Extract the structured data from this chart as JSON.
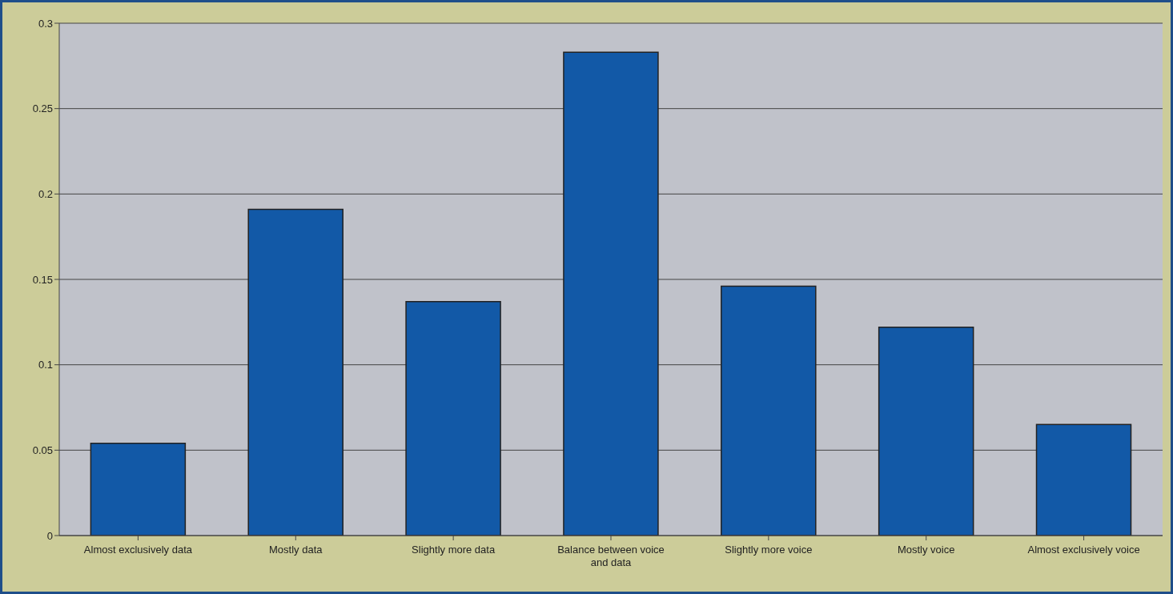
{
  "chart_data": {
    "type": "bar",
    "categories": [
      "Almost exclusively data",
      "Mostly data",
      "Slightly more data",
      "Balance between voice and data",
      "Slightly more voice",
      "Mostly voice",
      "Almost exclusively voice"
    ],
    "values": [
      0.054,
      0.191,
      0.137,
      0.283,
      0.146,
      0.122,
      0.065
    ],
    "color": "#1259a7",
    "ylim": [
      0,
      0.3
    ],
    "yticks": [
      0,
      0.05,
      0.1,
      0.15,
      0.2,
      0.25,
      0.3
    ],
    "grid": "y"
  }
}
